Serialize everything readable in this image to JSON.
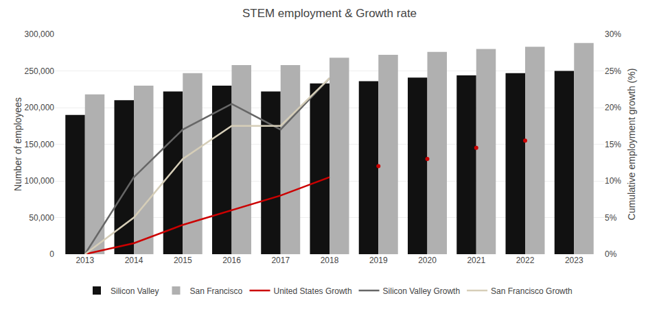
{
  "chart_data": {
    "type": "bar",
    "title": "STEM employment & Growth rate",
    "categories": [
      "2013",
      "2014",
      "2015",
      "2016",
      "2017",
      "2018",
      "2019",
      "2020",
      "2021",
      "2022",
      "2023"
    ],
    "series": [
      {
        "name": "Silicon Valley",
        "type": "bar",
        "color": "#111111",
        "values": [
          190000,
          210000,
          222000,
          230000,
          222000,
          233000,
          236000,
          241000,
          244000,
          247000,
          250000
        ]
      },
      {
        "name": "San Francisco",
        "type": "bar",
        "color": "#b0b0b0",
        "values": [
          218000,
          230000,
          247000,
          258000,
          258000,
          268000,
          272000,
          276000,
          280000,
          283000,
          288000
        ]
      },
      {
        "name": "United States Growth",
        "type": "line",
        "axis": "y2",
        "color": "#cc0000",
        "values": [
          0.0,
          0.015,
          0.04,
          0.06,
          0.08,
          0.105,
          null,
          null,
          null,
          null,
          null
        ]
      },
      {
        "name": "Silicon Valley Growth",
        "type": "line",
        "axis": "y2",
        "color": "#666666",
        "values": [
          0.0,
          0.105,
          0.17,
          0.205,
          0.17,
          0.24,
          null,
          null,
          null,
          null,
          null
        ]
      },
      {
        "name": "San Francisco Growth",
        "type": "line",
        "axis": "y2",
        "color": "#d6ceb8",
        "values": [
          0.0,
          0.05,
          0.13,
          0.175,
          0.175,
          0.24,
          null,
          null,
          null,
          null,
          null
        ]
      },
      {
        "name": "United States Growth",
        "type": "scatter",
        "marker": "circle",
        "axis": "y2",
        "color": "#cc0000",
        "values": [
          null,
          null,
          null,
          null,
          null,
          null,
          0.12,
          0.13,
          0.145,
          0.155,
          null
        ]
      }
    ],
    "ylabel": "Number of employees",
    "y2label": "Cumulative employment growth (%)",
    "ylim": [
      0,
      300000
    ],
    "yticks": [
      0,
      {
        "value": 50000,
        "label": "50,000"
      },
      {
        "value": 100000,
        "label": "100,000"
      },
      {
        "value": 150000,
        "label": "150,000"
      },
      {
        "value": 200000,
        "label": "200,000"
      },
      {
        "value": 250000,
        "label": "250,000"
      },
      {
        "value": 300000,
        "label": "300,000"
      }
    ],
    "y2lim": [
      0,
      0.3
    ],
    "y2ticks": [
      {
        "value": 0,
        "label": "0%"
      },
      {
        "value": 0.05,
        "label": "5%"
      },
      {
        "value": 0.1,
        "label": "10%"
      },
      {
        "value": 0.15,
        "label": "15%"
      },
      {
        "value": 0.2,
        "label": "20%"
      },
      {
        "value": 0.25,
        "label": "25%"
      },
      {
        "value": 0.3,
        "label": "30%"
      }
    ],
    "grid": true,
    "legend": "bottom"
  }
}
